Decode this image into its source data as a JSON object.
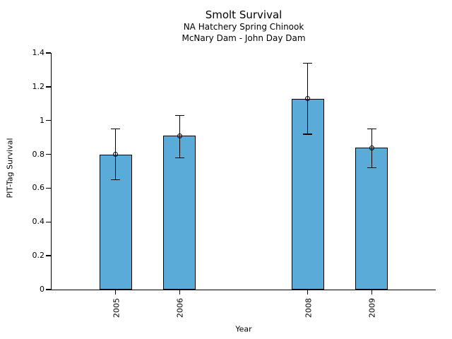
{
  "chart_data": {
    "type": "bar",
    "title": "Smolt Survival",
    "subtitles": [
      "NA Hatchery Spring Chinook",
      "McNary Dam - John Day Dam"
    ],
    "xlabel": "Year",
    "ylabel": "PIT-Tag Survival",
    "categories": [
      "2005",
      "2006",
      "2008",
      "2009"
    ],
    "x": [
      2005,
      2006,
      2008,
      2009
    ],
    "values": [
      0.8,
      0.91,
      1.13,
      0.84
    ],
    "error_low": [
      0.65,
      0.78,
      0.92,
      0.72
    ],
    "error_high": [
      0.95,
      1.03,
      1.34,
      0.95
    ],
    "xlim": [
      2004,
      2010
    ],
    "ylim": [
      0,
      1.4
    ],
    "yticks": [
      0,
      0.2,
      0.4,
      0.6,
      0.8,
      1,
      1.2,
      1.4
    ],
    "ytick_labels": [
      "0",
      "0.2",
      "0.4",
      "0.6",
      "0.8",
      "1",
      "1.2",
      "1.4"
    ],
    "xtick_rotation_deg": 90,
    "bar_width_years": 0.51,
    "grid": false,
    "legend": null,
    "error_marker": "open-circle",
    "colors": {
      "bar_fill": "#5aabd8",
      "bar_edge": "#000000",
      "error_bar": "#000000",
      "text": "#000000",
      "background": "#ffffff"
    }
  }
}
